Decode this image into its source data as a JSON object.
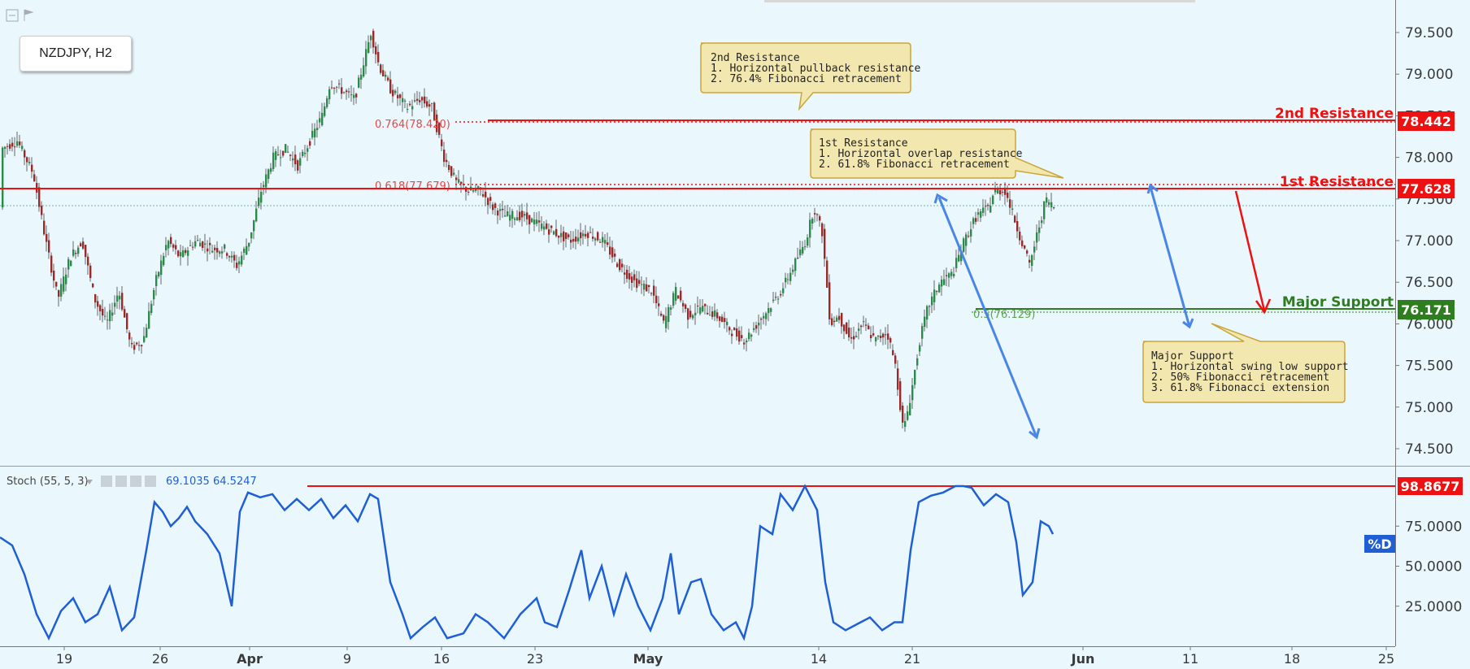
{
  "symbol_label": "NZDJPY, H2",
  "colors": {
    "resistance": "#ee1111",
    "support": "#2e7d1e",
    "stoch_line": "#1f5fd6",
    "arrow_blue": "#4a86e8",
    "annotation_bg": "#f3e7b0",
    "annotation_border": "#c9a53a",
    "candle_up": "#2c8a4a",
    "candle_down": "#9a2a2a"
  },
  "annotations": {
    "second_resistance": {
      "title": "2nd Resistance",
      "lines": [
        "1. Horizontal pullback resistance",
        "2. 76.4% Fibonacci retracement"
      ]
    },
    "first_resistance": {
      "title": "1st Resistance",
      "lines": [
        "1. Horizontal overlap resistance",
        "2. 61.8% Fibonacci retracement"
      ]
    },
    "major_support": {
      "title": "Major Support",
      "lines": [
        "1. Horizontal swing low support",
        "2. 50% Fibonacci retracement",
        "3. 61.8% Fibonacci extension"
      ]
    }
  },
  "levels": {
    "second_resistance": {
      "label": "2nd Resistance",
      "tag": "78.442"
    },
    "first_resistance": {
      "label": "1st Resistance",
      "tag": "77.628"
    },
    "major_support": {
      "label": "Major Support",
      "tag": "76.171"
    }
  },
  "fib_labels": {
    "f764": "0.764(78.420)",
    "f618": "0.618(77.679)",
    "f50": "0.5(76.129)"
  },
  "stoch": {
    "label": "Stoch (55, 5, 3)",
    "value1": "69.1035",
    "value2": "64.5247",
    "level_tag": "98.8677",
    "pd_tag": "%D"
  },
  "chart_data": {
    "type": "candlestick",
    "symbol": "NZDJPY",
    "timeframe": "H2",
    "price_axis": {
      "ticks": [
        "79.500",
        "79.000",
        "78.500",
        "78.000",
        "77.500",
        "77.000",
        "76.500",
        "76.000",
        "75.500",
        "75.000",
        "74.500"
      ],
      "range": [
        74.3,
        79.9
      ]
    },
    "x_ticks": [
      "19",
      "26",
      "Apr",
      "9",
      "16",
      "23",
      "May",
      "14",
      "21",
      "Jun",
      "11",
      "18",
      "25"
    ],
    "price_path": [
      [
        0,
        78.1
      ],
      [
        20,
        78.2
      ],
      [
        40,
        77.8
      ],
      [
        55,
        77.0
      ],
      [
        70,
        76.3
      ],
      [
        85,
        76.8
      ],
      [
        100,
        77.0
      ],
      [
        115,
        76.3
      ],
      [
        130,
        76.0
      ],
      [
        145,
        76.4
      ],
      [
        160,
        75.7
      ],
      [
        175,
        75.8
      ],
      [
        190,
        76.5
      ],
      [
        205,
        77.0
      ],
      [
        220,
        76.8
      ],
      [
        240,
        77.0
      ],
      [
        260,
        76.9
      ],
      [
        275,
        76.9
      ],
      [
        290,
        76.7
      ],
      [
        305,
        77.0
      ],
      [
        320,
        77.6
      ],
      [
        335,
        78.0
      ],
      [
        350,
        78.1
      ],
      [
        365,
        77.9
      ],
      [
        380,
        78.2
      ],
      [
        395,
        78.5
      ],
      [
        405,
        78.9
      ],
      [
        420,
        78.8
      ],
      [
        435,
        78.7
      ],
      [
        445,
        79.1
      ],
      [
        455,
        79.5
      ],
      [
        465,
        79.1
      ],
      [
        480,
        78.8
      ],
      [
        500,
        78.6
      ],
      [
        515,
        78.7
      ],
      [
        530,
        78.6
      ],
      [
        545,
        78.0
      ],
      [
        560,
        77.7
      ],
      [
        575,
        77.6
      ],
      [
        590,
        77.6
      ],
      [
        605,
        77.4
      ],
      [
        620,
        77.3
      ],
      [
        640,
        77.3
      ],
      [
        660,
        77.2
      ],
      [
        680,
        77.1
      ],
      [
        700,
        77.0
      ],
      [
        720,
        77.1
      ],
      [
        740,
        77.0
      ],
      [
        760,
        76.7
      ],
      [
        780,
        76.5
      ],
      [
        800,
        76.4
      ],
      [
        815,
        76.0
      ],
      [
        830,
        76.4
      ],
      [
        845,
        76.1
      ],
      [
        860,
        76.2
      ],
      [
        880,
        76.1
      ],
      [
        900,
        75.9
      ],
      [
        915,
        75.8
      ],
      [
        930,
        76.0
      ],
      [
        945,
        76.2
      ],
      [
        960,
        76.4
      ],
      [
        975,
        76.7
      ],
      [
        990,
        77.0
      ],
      [
        1000,
        77.4
      ],
      [
        1010,
        77.1
      ],
      [
        1020,
        76.0
      ],
      [
        1030,
        76.1
      ],
      [
        1045,
        75.8
      ],
      [
        1060,
        76.0
      ],
      [
        1075,
        75.8
      ],
      [
        1090,
        75.9
      ],
      [
        1100,
        75.5
      ],
      [
        1110,
        74.7
      ],
      [
        1120,
        75.2
      ],
      [
        1130,
        75.8
      ],
      [
        1140,
        76.2
      ],
      [
        1155,
        76.5
      ],
      [
        1170,
        76.6
      ],
      [
        1185,
        77.0
      ],
      [
        1200,
        77.3
      ],
      [
        1215,
        77.4
      ],
      [
        1222,
        77.6
      ],
      [
        1235,
        77.6
      ],
      [
        1245,
        77.3
      ],
      [
        1255,
        77.0
      ],
      [
        1265,
        76.7
      ],
      [
        1275,
        77.1
      ],
      [
        1285,
        77.5
      ],
      [
        1295,
        77.4
      ]
    ],
    "stoch_path": [
      [
        0,
        68
      ],
      [
        15,
        63
      ],
      [
        30,
        45
      ],
      [
        45,
        20
      ],
      [
        60,
        5
      ],
      [
        75,
        22
      ],
      [
        90,
        30
      ],
      [
        105,
        15
      ],
      [
        120,
        20
      ],
      [
        135,
        37
      ],
      [
        150,
        10
      ],
      [
        165,
        18
      ],
      [
        180,
        60
      ],
      [
        190,
        90
      ],
      [
        200,
        84
      ],
      [
        210,
        75
      ],
      [
        220,
        80
      ],
      [
        230,
        87
      ],
      [
        240,
        78
      ],
      [
        255,
        70
      ],
      [
        270,
        58
      ],
      [
        285,
        25
      ],
      [
        295,
        84
      ],
      [
        305,
        96
      ],
      [
        320,
        93
      ],
      [
        335,
        95
      ],
      [
        350,
        85
      ],
      [
        365,
        92
      ],
      [
        380,
        85
      ],
      [
        395,
        92
      ],
      [
        410,
        80
      ],
      [
        425,
        88
      ],
      [
        440,
        78
      ],
      [
        455,
        95
      ],
      [
        465,
        92
      ],
      [
        480,
        40
      ],
      [
        495,
        20
      ],
      [
        505,
        5
      ],
      [
        520,
        12
      ],
      [
        535,
        18
      ],
      [
        550,
        5
      ],
      [
        570,
        8
      ],
      [
        585,
        20
      ],
      [
        600,
        15
      ],
      [
        620,
        5
      ],
      [
        640,
        20
      ],
      [
        660,
        30
      ],
      [
        670,
        15
      ],
      [
        685,
        12
      ],
      [
        700,
        35
      ],
      [
        715,
        60
      ],
      [
        725,
        30
      ],
      [
        740,
        50
      ],
      [
        755,
        20
      ],
      [
        770,
        45
      ],
      [
        785,
        25
      ],
      [
        800,
        10
      ],
      [
        815,
        30
      ],
      [
        825,
        58
      ],
      [
        835,
        20
      ],
      [
        850,
        40
      ],
      [
        862,
        42
      ],
      [
        875,
        20
      ],
      [
        890,
        10
      ],
      [
        905,
        15
      ],
      [
        915,
        5
      ],
      [
        925,
        25
      ],
      [
        935,
        75
      ],
      [
        950,
        70
      ],
      [
        960,
        95
      ],
      [
        975,
        85
      ],
      [
        990,
        100
      ],
      [
        1005,
        85
      ],
      [
        1015,
        40
      ],
      [
        1025,
        15
      ],
      [
        1040,
        10
      ],
      [
        1055,
        14
      ],
      [
        1070,
        18
      ],
      [
        1085,
        10
      ],
      [
        1100,
        15
      ],
      [
        1110,
        15
      ],
      [
        1120,
        60
      ],
      [
        1130,
        90
      ],
      [
        1145,
        94
      ],
      [
        1160,
        96
      ],
      [
        1175,
        100
      ],
      [
        1185,
        100
      ],
      [
        1195,
        99
      ],
      [
        1210,
        88
      ],
      [
        1225,
        95
      ],
      [
        1240,
        90
      ],
      [
        1250,
        65
      ],
      [
        1258,
        32
      ],
      [
        1270,
        40
      ],
      [
        1280,
        78
      ],
      [
        1290,
        75
      ],
      [
        1295,
        70
      ]
    ],
    "stoch_axis": {
      "ticks": [
        "75.0000",
        "50.0000",
        "25.0000"
      ]
    }
  }
}
